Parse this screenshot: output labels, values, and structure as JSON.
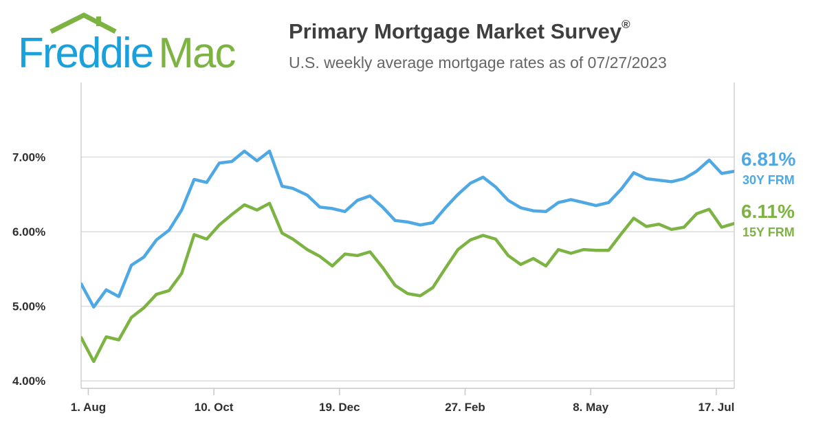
{
  "brand": {
    "name": "Freddie Mac",
    "colors": {
      "blue": "#1aa0db",
      "green": "#7cb342"
    }
  },
  "chart_data": {
    "type": "line",
    "title": "Primary Mortgage Market Survey",
    "title_mark": "®",
    "subtitle": "U.S. weekly average mortgage rates as of 07/27/2023",
    "xlabel": "",
    "ylabel": "",
    "ylim": [
      3.9,
      8.0
    ],
    "y_ticks": [
      {
        "value": 4.0,
        "label": "4.00%"
      },
      {
        "value": 5.0,
        "label": "5.00%"
      },
      {
        "value": 6.0,
        "label": "6.00%"
      },
      {
        "value": 7.0,
        "label": "7.00%"
      }
    ],
    "grid": true,
    "x_start": "2022-07-28",
    "x_end": "2023-07-27",
    "x_ticks": [
      {
        "date": "2022-08-01",
        "label": "1. Aug"
      },
      {
        "date": "2022-10-10",
        "label": "10. Oct"
      },
      {
        "date": "2022-12-19",
        "label": "19. Dec"
      },
      {
        "date": "2023-02-27",
        "label": "27. Feb"
      },
      {
        "date": "2023-05-08",
        "label": "8. May"
      },
      {
        "date": "2023-07-17",
        "label": "17. Jul"
      }
    ],
    "x": [
      "2022-07-28",
      "2022-08-04",
      "2022-08-11",
      "2022-08-18",
      "2022-08-25",
      "2022-09-01",
      "2022-09-08",
      "2022-09-15",
      "2022-09-22",
      "2022-09-29",
      "2022-10-06",
      "2022-10-13",
      "2022-10-20",
      "2022-10-27",
      "2022-11-03",
      "2022-11-10",
      "2022-11-17",
      "2022-11-23",
      "2022-12-01",
      "2022-12-08",
      "2022-12-15",
      "2022-12-22",
      "2022-12-29",
      "2023-01-05",
      "2023-01-12",
      "2023-01-19",
      "2023-01-26",
      "2023-02-02",
      "2023-02-09",
      "2023-02-16",
      "2023-02-23",
      "2023-03-02",
      "2023-03-09",
      "2023-03-16",
      "2023-03-23",
      "2023-03-30",
      "2023-04-06",
      "2023-04-13",
      "2023-04-20",
      "2023-04-27",
      "2023-05-04",
      "2023-05-11",
      "2023-05-18",
      "2023-05-25",
      "2023-06-01",
      "2023-06-08",
      "2023-06-15",
      "2023-06-22",
      "2023-06-29",
      "2023-07-06",
      "2023-07-13",
      "2023-07-20",
      "2023-07-27"
    ],
    "series": [
      {
        "name": "30Y FRM",
        "end_label": "6.81%",
        "color": "#4ea8e4",
        "values": [
          5.3,
          4.99,
          5.22,
          5.13,
          5.55,
          5.66,
          5.89,
          6.02,
          6.29,
          6.7,
          6.66,
          6.92,
          6.94,
          7.08,
          6.95,
          7.08,
          6.61,
          6.58,
          6.49,
          6.33,
          6.31,
          6.27,
          6.42,
          6.48,
          6.33,
          6.15,
          6.13,
          6.09,
          6.12,
          6.32,
          6.5,
          6.65,
          6.73,
          6.6,
          6.42,
          6.32,
          6.28,
          6.27,
          6.39,
          6.43,
          6.39,
          6.35,
          6.39,
          6.57,
          6.79,
          6.71,
          6.69,
          6.67,
          6.71,
          6.81,
          6.96,
          6.78,
          6.81
        ]
      },
      {
        "name": "15Y FRM",
        "end_label": "6.11%",
        "color": "#7cb342",
        "values": [
          4.58,
          4.26,
          4.59,
          4.55,
          4.85,
          4.98,
          5.16,
          5.21,
          5.44,
          5.96,
          5.9,
          6.09,
          6.23,
          6.36,
          6.29,
          6.38,
          5.98,
          5.9,
          5.76,
          5.67,
          5.54,
          5.7,
          5.68,
          5.73,
          5.52,
          5.28,
          5.17,
          5.14,
          5.25,
          5.51,
          5.76,
          5.89,
          5.95,
          5.9,
          5.68,
          5.56,
          5.64,
          5.54,
          5.76,
          5.71,
          5.76,
          5.75,
          5.75,
          5.97,
          6.18,
          6.07,
          6.1,
          6.03,
          6.06,
          6.24,
          6.3,
          6.06,
          6.11
        ]
      }
    ],
    "end_labels_position": "right"
  }
}
